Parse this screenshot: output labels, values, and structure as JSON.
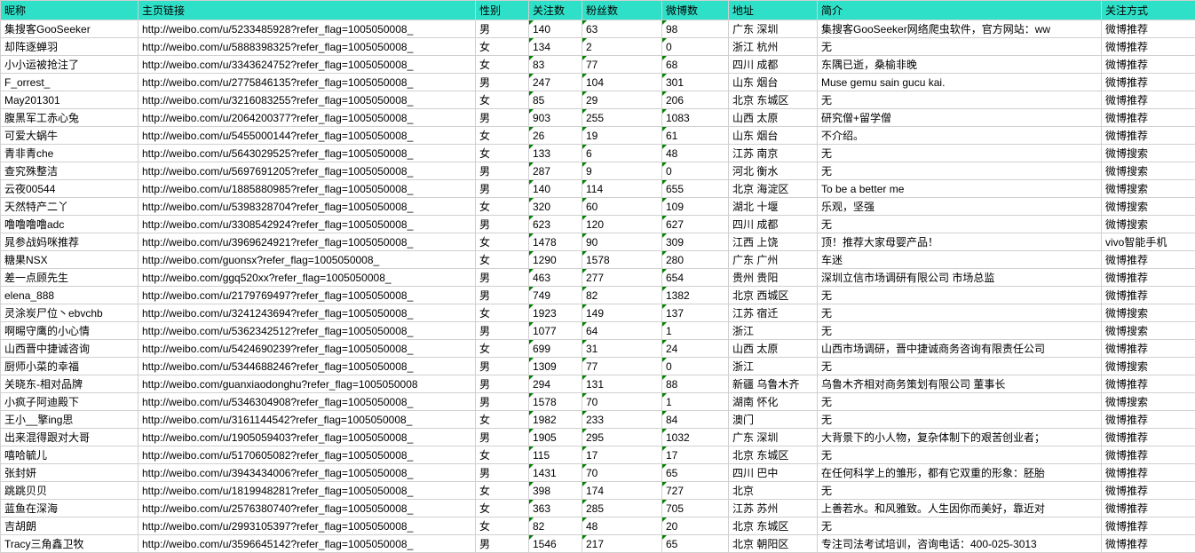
{
  "header_bg": "#2fe0c8",
  "columns": [
    "昵称",
    "主页链接",
    "性别",
    "关注数",
    "粉丝数",
    "微博数",
    "地址",
    "简介",
    "关注方式"
  ],
  "numeric_cols": [
    3,
    4,
    5
  ],
  "rows": [
    [
      "集搜客GooSeeker",
      "http://weibo.com/u/5233485928?refer_flag=1005050008_",
      "男",
      "140",
      "63",
      "98",
      "广东 深圳",
      "集搜客GooSeeker网络爬虫软件，官方网站：ww",
      "微博推荐"
    ],
    [
      "却阵逐蝉羽",
      "http://weibo.com/u/5888398325?refer_flag=1005050008_",
      "女",
      "134",
      "2",
      "0",
      "浙江 杭州",
      "无",
      "微博推荐"
    ],
    [
      "小小运被抢注了",
      "http://weibo.com/u/3343624752?refer_flag=1005050008_",
      "女",
      "83",
      "77",
      "68",
      "四川 成都",
      "东隅已逝，桑榆非晚",
      "微博推荐"
    ],
    [
      "F_orrest_",
      "http://weibo.com/u/2775846135?refer_flag=1005050008_",
      "男",
      "247",
      "104",
      "301",
      "山东 烟台",
      "Muse gemu sain gucu kai.",
      "微博推荐"
    ],
    [
      "May201301",
      "http://weibo.com/u/3216083255?refer_flag=1005050008_",
      "女",
      "85",
      "29",
      "206",
      "北京 东城区",
      "无",
      "微博推荐"
    ],
    [
      "腹黑军工赤心兔",
      "http://weibo.com/u/2064200377?refer_flag=1005050008_",
      "男",
      "903",
      "255",
      "1083",
      "山西 太原",
      "研究僧+留学僧",
      "微博推荐"
    ],
    [
      "可爱大蜗牛",
      "http://weibo.com/u/5455000144?refer_flag=1005050008_",
      "女",
      "26",
      "19",
      "61",
      "山东 烟台",
      "不介绍。",
      "微博推荐"
    ],
    [
      "青非青che",
      "http://weibo.com/u/5643029525?refer_flag=1005050008_",
      "女",
      "133",
      "6",
      "48",
      "江苏 南京",
      "无",
      "微博搜索"
    ],
    [
      "查究殊整洁",
      "http://weibo.com/u/5697691205?refer_flag=1005050008_",
      "男",
      "287",
      "9",
      "0",
      "河北 衡水",
      "无",
      "微博搜索"
    ],
    [
      "云夜00544",
      "http://weibo.com/u/1885880985?refer_flag=1005050008_",
      "男",
      "140",
      "114",
      "655",
      "北京 海淀区",
      "To be a better me",
      "微博搜索"
    ],
    [
      "天然特产二丫",
      "http://weibo.com/u/5398328704?refer_flag=1005050008_",
      "女",
      "320",
      "60",
      "109",
      "湖北 十堰",
      "乐观，坚强",
      "微博搜索"
    ],
    [
      "噜噜噜噜adc",
      "http://weibo.com/u/3308542924?refer_flag=1005050008_",
      "男",
      "623",
      "120",
      "627",
      "四川 成都",
      "无",
      "微博搜索"
    ],
    [
      "晁参战妈咪推荐",
      "http://weibo.com/u/3969624921?refer_flag=1005050008_",
      "女",
      "1478",
      "90",
      "309",
      "江西 上饶",
      "顶！推荐大家母婴产品！",
      "vivo智能手机"
    ],
    [
      "糖果NSX",
      "http://weibo.com/guonsx?refer_flag=1005050008_",
      "女",
      "1290",
      "1578",
      "280",
      "广东 广州",
      "车迷",
      "微博推荐"
    ],
    [
      "差一点顾先生",
      "http://weibo.com/ggq520xx?refer_flag=1005050008_",
      "男",
      "463",
      "277",
      "654",
      "贵州 贵阳",
      "深圳立信市场调研有限公司 市场总监",
      "微博推荐"
    ],
    [
      "elena_888",
      "http://weibo.com/u/2179769497?refer_flag=1005050008_",
      "男",
      "749",
      "82",
      "1382",
      "北京 西城区",
      "无",
      "微博推荐"
    ],
    [
      "灵涂炭尸位丶ebvchb",
      "http://weibo.com/u/3241243694?refer_flag=1005050008_",
      "女",
      "1923",
      "149",
      "137",
      "江苏 宿迁",
      "无",
      "微博搜索"
    ],
    [
      "啊晹守鹰的小心情",
      "http://weibo.com/u/5362342512?refer_flag=1005050008_",
      "男",
      "1077",
      "64",
      "1",
      "浙江",
      "无",
      "微博搜索"
    ],
    [
      "山西晋中捷诚咨询",
      "http://weibo.com/u/5424690239?refer_flag=1005050008_",
      "女",
      "699",
      "31",
      "24",
      "山西 太原",
      "山西市场调研，晋中捷诚商务咨询有限责任公司",
      "微博推荐"
    ],
    [
      "厨师小菜的幸福",
      "http://weibo.com/u/5344688246?refer_flag=1005050008_",
      "男",
      "1309",
      "77",
      "0",
      "浙江",
      "无",
      "微博搜索"
    ],
    [
      "关晓东-相对品牌",
      "http://weibo.com/guanxiaodonghu?refer_flag=1005050008",
      "男",
      "294",
      "131",
      "88",
      "新疆 乌鲁木齐",
      "乌鲁木齐相对商务策划有限公司 董事长",
      "微博推荐"
    ],
    [
      "小疯子阿迪殿下",
      "http://weibo.com/u/5346304908?refer_flag=1005050008_",
      "男",
      "1578",
      "70",
      "1",
      "湖南 怀化",
      "无",
      "微博搜索"
    ],
    [
      "王小__擎ing思",
      "http://weibo.com/u/3161144542?refer_flag=1005050008_",
      "女",
      "1982",
      "233",
      "84",
      "澳门",
      "无",
      "微博推荐"
    ],
    [
      "出来混得跟对大哥",
      "http://weibo.com/u/1905059403?refer_flag=1005050008_",
      "男",
      "1905",
      "295",
      "1032",
      "广东 深圳",
      "大背景下的小人物，复杂体制下的艰苦创业者；",
      "微博推荐"
    ],
    [
      "嘻哈毓儿",
      "http://weibo.com/u/5170605082?refer_flag=1005050008_",
      "女",
      "115",
      "17",
      "17",
      "北京 东城区",
      "无",
      "微博推荐"
    ],
    [
      "张封妍",
      "http://weibo.com/u/3943434006?refer_flag=1005050008_",
      "男",
      "1431",
      "70",
      "65",
      "四川 巴中",
      "在任何科学上的雏形，都有它双重的形象：胚胎",
      "微博推荐"
    ],
    [
      "跳跳贝贝",
      "http://weibo.com/u/1819948281?refer_flag=1005050008_",
      "女",
      "398",
      "174",
      "727",
      "北京",
      "无",
      "微博推荐"
    ],
    [
      "蓝鱼在深海",
      "http://weibo.com/u/2576380740?refer_flag=1005050008_",
      "女",
      "363",
      "285",
      "705",
      "江苏 苏州",
      "上善若水。和风雅致。人生因你而美好，靠近对",
      "微博推荐"
    ],
    [
      "吉胡朗",
      "http://weibo.com/u/2993105397?refer_flag=1005050008_",
      "女",
      "82",
      "48",
      "20",
      "北京 东城区",
      "无",
      "微博推荐"
    ],
    [
      "Tracy三角鑫卫牧",
      "http://weibo.com/u/3596645142?refer_flag=1005050008_",
      "男",
      "1546",
      "217",
      "65",
      "北京 朝阳区",
      "专注司法考试培训，咨询电话：400-025-3013",
      "微博推荐"
    ]
  ]
}
